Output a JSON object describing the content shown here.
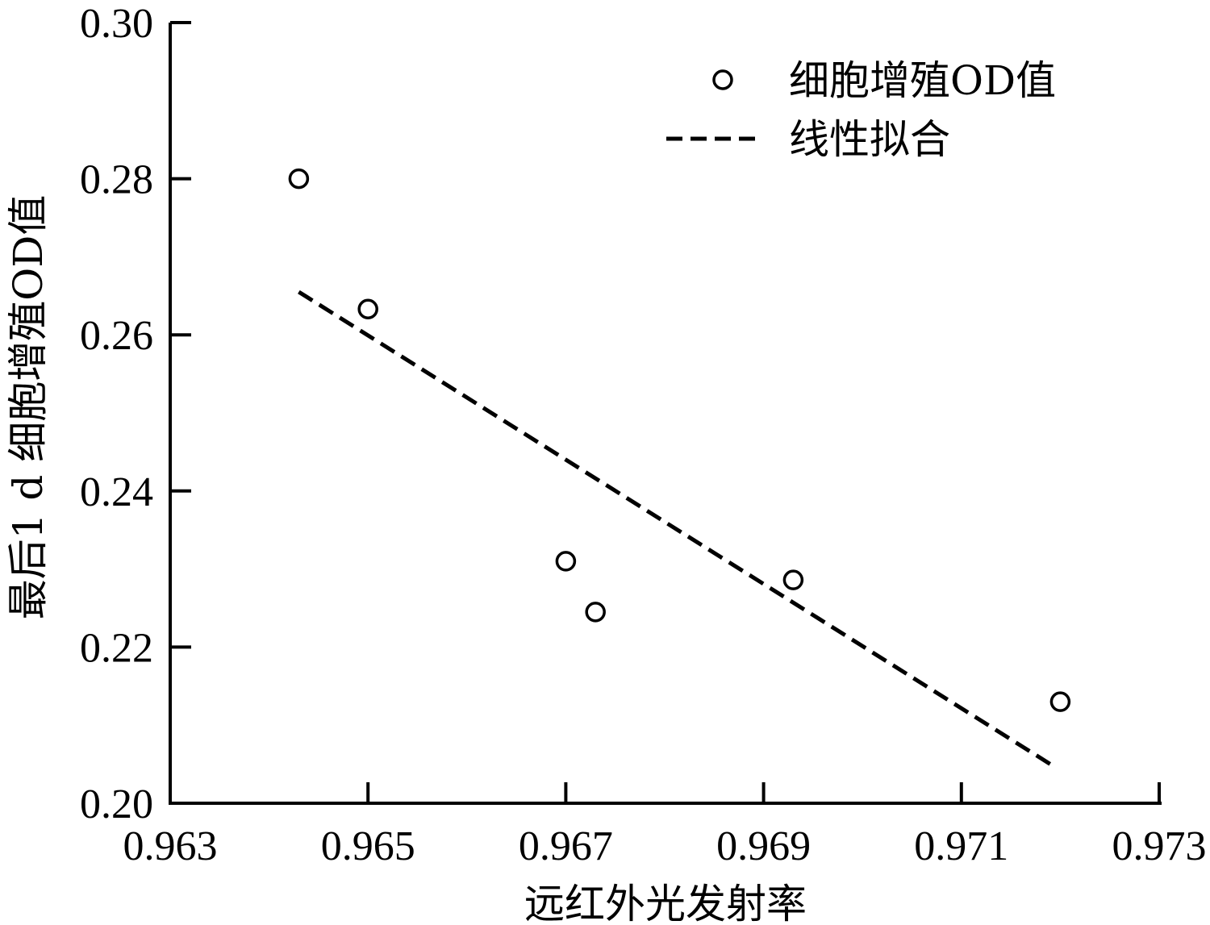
{
  "chart_data": {
    "type": "scatter",
    "xlabel": "远红外光发射率",
    "ylabel": "最后1 d 细胞增殖OD值",
    "xlim": [
      0.963,
      0.973
    ],
    "ylim": [
      0.2,
      0.3
    ],
    "x_ticks": [
      "0.963",
      "0.965",
      "0.967",
      "0.969",
      "0.971",
      "0.973"
    ],
    "y_ticks": [
      "0.20",
      "0.22",
      "0.24",
      "0.26",
      "0.28",
      "0.30"
    ],
    "grid": false,
    "legend_position": "top-right",
    "series": [
      {
        "name": "细胞增殖OD值",
        "kind": "scatter",
        "marker": "open-circle",
        "points": [
          {
            "x": 0.9643,
            "y": 0.28
          },
          {
            "x": 0.965,
            "y": 0.2633
          },
          {
            "x": 0.967,
            "y": 0.231
          },
          {
            "x": 0.9673,
            "y": 0.2245
          },
          {
            "x": 0.9693,
            "y": 0.2286
          },
          {
            "x": 0.972,
            "y": 0.213
          }
        ]
      },
      {
        "name": "线性拟合",
        "kind": "line",
        "style": "dashed",
        "points": [
          {
            "x": 0.9643,
            "y": 0.2655
          },
          {
            "x": 0.9719,
            "y": 0.205
          }
        ]
      }
    ]
  }
}
